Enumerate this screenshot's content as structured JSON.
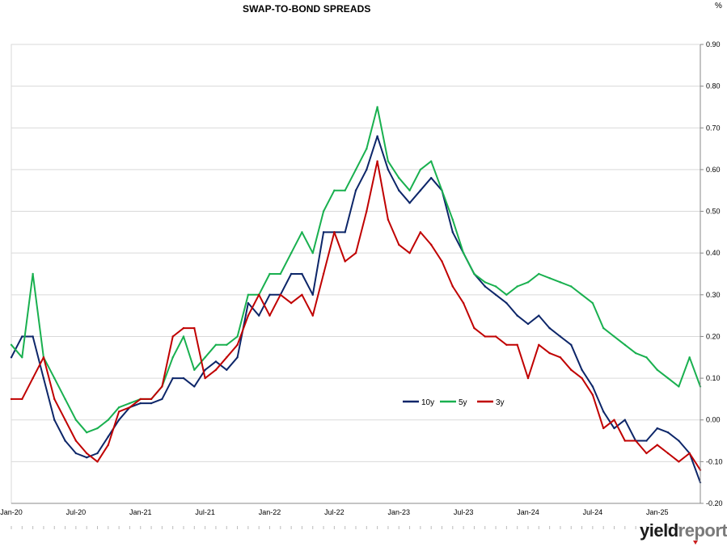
{
  "chart_data": {
    "type": "line",
    "title": "SWAP-TO-BOND SPREADS",
    "unit_label": "%",
    "xlabel": "",
    "ylabel": "",
    "ylim": [
      -0.2,
      0.9
    ],
    "y_ticks": [
      "-0.20",
      "-0.10",
      "0.00",
      "0.10",
      "0.20",
      "0.30",
      "0.40",
      "0.50",
      "0.60",
      "0.70",
      "0.80",
      "0.90"
    ],
    "x_ticks": [
      "Jan-20",
      "Jul-20",
      "Jan-21",
      "Jul-21",
      "Jan-22",
      "Jul-22",
      "Jan-23",
      "Jul-23",
      "Jan-24",
      "Jul-24",
      "Jan-25"
    ],
    "grid": "horizontal",
    "legend_position": "center-right",
    "x": [
      "Jan-20",
      "Feb-20",
      "Mar-20",
      "Apr-20",
      "May-20",
      "Jun-20",
      "Jul-20",
      "Aug-20",
      "Sep-20",
      "Oct-20",
      "Nov-20",
      "Dec-20",
      "Jan-21",
      "Feb-21",
      "Mar-21",
      "Apr-21",
      "May-21",
      "Jun-21",
      "Jul-21",
      "Aug-21",
      "Sep-21",
      "Oct-21",
      "Nov-21",
      "Dec-21",
      "Jan-22",
      "Feb-22",
      "Mar-22",
      "Apr-22",
      "May-22",
      "Jun-22",
      "Jul-22",
      "Aug-22",
      "Sep-22",
      "Oct-22",
      "Nov-22",
      "Dec-22",
      "Jan-23",
      "Feb-23",
      "Mar-23",
      "Apr-23",
      "May-23",
      "Jun-23",
      "Jul-23",
      "Aug-23",
      "Sep-23",
      "Oct-23",
      "Nov-23",
      "Dec-23",
      "Jan-24",
      "Feb-24",
      "Mar-24",
      "Apr-24",
      "May-24",
      "Jun-24",
      "Jul-24",
      "Aug-24",
      "Sep-24",
      "Oct-24",
      "Nov-24",
      "Dec-24",
      "Jan-25",
      "Feb-25",
      "Mar-25",
      "Apr-25",
      "May-25"
    ],
    "series": [
      {
        "name": "10y",
        "color": "#0d2669",
        "values": [
          0.15,
          0.2,
          0.2,
          0.1,
          0.0,
          -0.05,
          -0.08,
          -0.09,
          -0.08,
          -0.04,
          0.0,
          0.03,
          0.04,
          0.04,
          0.05,
          0.1,
          0.1,
          0.08,
          0.12,
          0.14,
          0.12,
          0.15,
          0.28,
          0.25,
          0.3,
          0.3,
          0.35,
          0.35,
          0.3,
          0.45,
          0.45,
          0.45,
          0.55,
          0.6,
          0.68,
          0.6,
          0.55,
          0.52,
          0.55,
          0.58,
          0.55,
          0.45,
          0.4,
          0.35,
          0.32,
          0.3,
          0.28,
          0.25,
          0.23,
          0.25,
          0.22,
          0.2,
          0.18,
          0.12,
          0.08,
          0.02,
          -0.02,
          0.0,
          -0.05,
          -0.05,
          -0.02,
          -0.03,
          -0.05,
          -0.08,
          -0.15
        ]
      },
      {
        "name": "5y",
        "color": "#19b04f",
        "values": [
          0.18,
          0.15,
          0.35,
          0.15,
          0.1,
          0.05,
          0.0,
          -0.03,
          -0.02,
          0.0,
          0.03,
          0.04,
          0.05,
          0.05,
          0.08,
          0.15,
          0.2,
          0.12,
          0.15,
          0.18,
          0.18,
          0.2,
          0.3,
          0.3,
          0.35,
          0.35,
          0.4,
          0.45,
          0.4,
          0.5,
          0.55,
          0.55,
          0.6,
          0.65,
          0.75,
          0.62,
          0.58,
          0.55,
          0.6,
          0.62,
          0.55,
          0.48,
          0.4,
          0.35,
          0.33,
          0.32,
          0.3,
          0.32,
          0.33,
          0.35,
          0.34,
          0.33,
          0.32,
          0.3,
          0.28,
          0.22,
          0.2,
          0.18,
          0.16,
          0.15,
          0.12,
          0.1,
          0.08,
          0.15,
          0.08
        ]
      },
      {
        "name": "3y",
        "color": "#c00000",
        "values": [
          0.05,
          0.05,
          0.1,
          0.15,
          0.05,
          0.0,
          -0.05,
          -0.08,
          -0.1,
          -0.06,
          0.02,
          0.03,
          0.05,
          0.05,
          0.08,
          0.2,
          0.22,
          0.22,
          0.1,
          0.12,
          0.15,
          0.18,
          0.25,
          0.3,
          0.25,
          0.3,
          0.28,
          0.3,
          0.25,
          0.35,
          0.45,
          0.38,
          0.4,
          0.5,
          0.62,
          0.48,
          0.42,
          0.4,
          0.45,
          0.42,
          0.38,
          0.32,
          0.28,
          0.22,
          0.2,
          0.2,
          0.18,
          0.18,
          0.1,
          0.18,
          0.16,
          0.15,
          0.12,
          0.1,
          0.06,
          -0.02,
          0.0,
          -0.05,
          -0.05,
          -0.08,
          -0.06,
          -0.08,
          -0.1,
          -0.08,
          -0.12
        ]
      }
    ]
  },
  "brand": {
    "part1": "yield",
    "part2": "report"
  }
}
